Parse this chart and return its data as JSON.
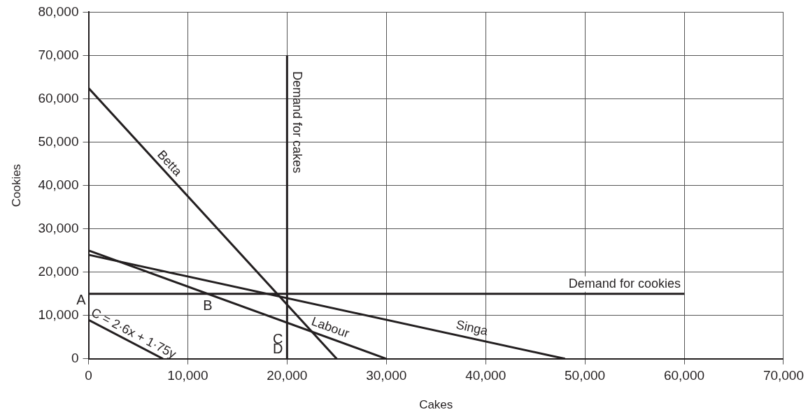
{
  "chart_data": {
    "type": "line",
    "xlabel": "Cakes",
    "ylabel": "Cookies",
    "xlim": [
      0,
      70000
    ],
    "xticks": [
      {
        "value": 0,
        "label": "0"
      },
      {
        "value": 10000,
        "label": "10,000"
      },
      {
        "value": 20000,
        "label": "20,000"
      },
      {
        "value": 30000,
        "label": "30,000"
      },
      {
        "value": 40000,
        "label": "40,000"
      },
      {
        "value": 50000,
        "label": "50,000"
      },
      {
        "value": 60000,
        "label": "60,000"
      },
      {
        "value": 70000,
        "label": "70,000"
      }
    ],
    "ylim": [
      0,
      80000
    ],
    "yticks": [
      {
        "value": 0,
        "label": "0"
      },
      {
        "value": 10000,
        "label": "10,000"
      },
      {
        "value": 20000,
        "label": "20,000"
      },
      {
        "value": 30000,
        "label": "30,000"
      },
      {
        "value": 40000,
        "label": "40,000"
      },
      {
        "value": 50000,
        "label": "50,000"
      },
      {
        "value": 60000,
        "label": "60,000"
      },
      {
        "value": 70000,
        "label": "70,000"
      },
      {
        "value": 80000,
        "label": "80,000"
      }
    ],
    "grid": true,
    "legend": false,
    "marker": "none",
    "line_style": "solid",
    "series": [
      {
        "name": "Betta",
        "color": "#231f20",
        "x": [
          0,
          25000
        ],
        "values": [
          62500,
          0
        ]
      },
      {
        "name": "Labour",
        "color": "#231f20",
        "x": [
          0,
          30000
        ],
        "values": [
          25000,
          0
        ]
      },
      {
        "name": "Singa",
        "color": "#231f20",
        "x": [
          0,
          48000
        ],
        "values": [
          24000,
          0
        ]
      },
      {
        "name": "Demand for cakes",
        "color": "#231f20",
        "x": [
          20000,
          20000
        ],
        "values": [
          0,
          70000
        ]
      },
      {
        "name": "Demand for cookies",
        "color": "#231f20",
        "x": [
          0,
          60000
        ],
        "values": [
          15000,
          15000
        ]
      },
      {
        "name": "C = 2·6x + 1·75y",
        "color": "#231f20",
        "x": [
          0,
          7500
        ],
        "values": [
          9000,
          0
        ]
      }
    ],
    "annotations": [
      {
        "text": "A",
        "x": 0,
        "y": 15000
      },
      {
        "text": "B",
        "x": 12000,
        "y": 15000
      },
      {
        "text": "C",
        "x": 20000,
        "y": 8333
      },
      {
        "text": "D",
        "x": 20000,
        "y": 0
      }
    ]
  }
}
